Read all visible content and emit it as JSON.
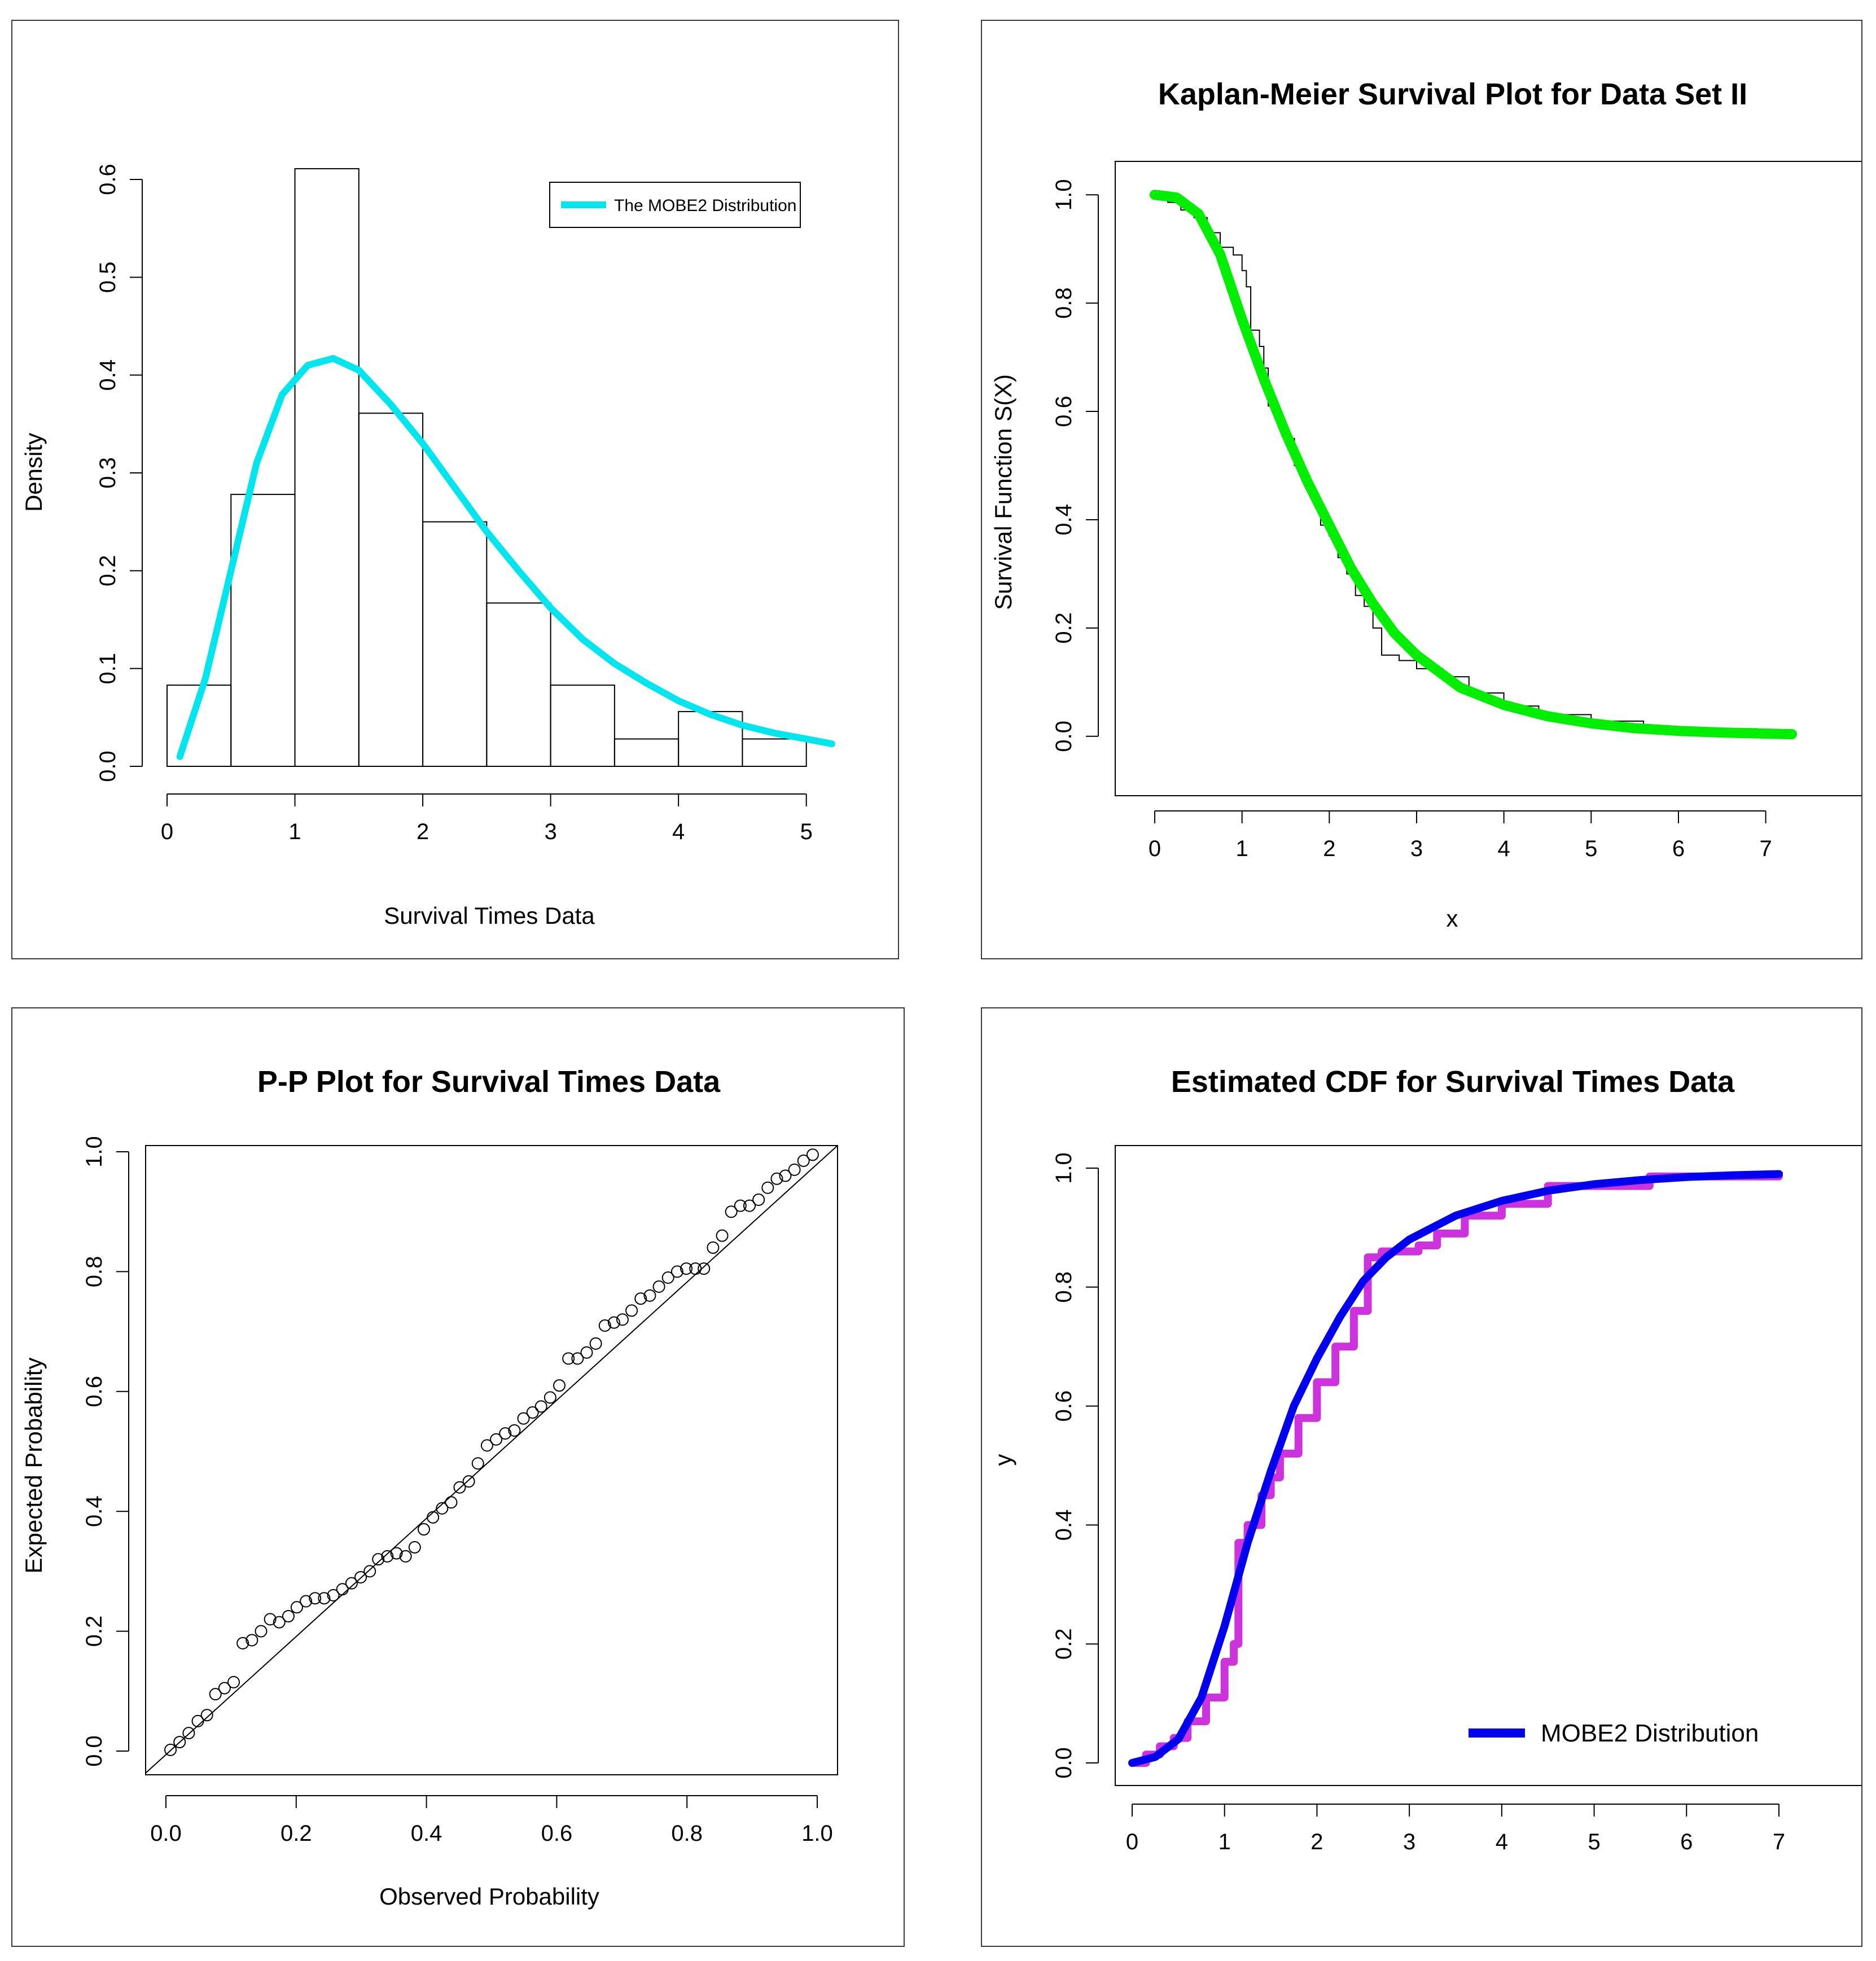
{
  "chart_data": [
    {
      "id": "density",
      "type": "histogram",
      "title": "",
      "xlabel": "Survival Times Data",
      "ylabel": "Density",
      "xlim": [
        0,
        5.2
      ],
      "ylim": [
        0,
        0.6
      ],
      "xticks": [
        "0",
        "1",
        "2",
        "3",
        "4",
        "5"
      ],
      "yticks": [
        "0.0",
        "0.1",
        "0.2",
        "0.3",
        "0.4",
        "0.5",
        "0.6"
      ],
      "bins": [
        0,
        0.5,
        1,
        1.5,
        2,
        2.5,
        3,
        3.5,
        4,
        4.5,
        5
      ],
      "densities": [
        0.083,
        0.278,
        0.611,
        0.361,
        0.25,
        0.167,
        0.083,
        0.028,
        0.056,
        0.028
      ],
      "curve": {
        "name": "The MOBE2 Distribution",
        "color": "#00e5ee",
        "x": [
          0.1,
          0.3,
          0.5,
          0.7,
          0.9,
          1.1,
          1.3,
          1.5,
          1.75,
          2.0,
          2.25,
          2.5,
          2.75,
          3.0,
          3.25,
          3.5,
          3.75,
          4.0,
          4.25,
          4.5,
          4.75,
          5.0,
          5.2
        ],
        "y": [
          0.01,
          0.09,
          0.2,
          0.31,
          0.38,
          0.41,
          0.417,
          0.405,
          0.37,
          0.33,
          0.285,
          0.24,
          0.2,
          0.162,
          0.13,
          0.105,
          0.085,
          0.067,
          0.053,
          0.042,
          0.034,
          0.028,
          0.023
        ]
      },
      "legend": "top-right"
    },
    {
      "id": "km",
      "type": "line",
      "title": "Kaplan-Meier Survival Plot for Data Set II",
      "xlabel": "x",
      "ylabel": "Survival  Function S(X)",
      "xlim": [
        0,
        7.3
      ],
      "ylim": [
        0,
        1
      ],
      "xticks": [
        "0",
        "1",
        "2",
        "3",
        "4",
        "5",
        "6",
        "7"
      ],
      "yticks": [
        "0.0",
        "0.2",
        "0.4",
        "0.6",
        "0.8",
        "1.0"
      ],
      "km_steps": {
        "x": [
          0,
          0.15,
          0.3,
          0.45,
          0.6,
          0.75,
          0.9,
          1.0,
          1.05,
          1.1,
          1.2,
          1.25,
          1.3,
          1.4,
          1.5,
          1.6,
          1.7,
          1.8,
          1.9,
          2.0,
          2.1,
          2.2,
          2.3,
          2.4,
          2.5,
          2.6,
          2.8,
          3.0,
          3.3,
          3.6,
          4.0,
          4.4,
          5.0,
          5.6,
          6.0,
          6.9,
          7.3
        ],
        "y": [
          1.0,
          0.986,
          0.972,
          0.958,
          0.93,
          0.903,
          0.889,
          0.86,
          0.83,
          0.75,
          0.72,
          0.68,
          0.61,
          0.58,
          0.55,
          0.5,
          0.47,
          0.44,
          0.39,
          0.37,
          0.33,
          0.3,
          0.26,
          0.24,
          0.2,
          0.15,
          0.14,
          0.125,
          0.11,
          0.08,
          0.056,
          0.04,
          0.028,
          0.014,
          0.014,
          0.0,
          0.0
        ]
      },
      "fitted": {
        "color": "#00ee00",
        "x": [
          0,
          0.25,
          0.5,
          0.75,
          1.0,
          1.25,
          1.5,
          1.75,
          2.0,
          2.25,
          2.5,
          2.75,
          3.0,
          3.5,
          4.0,
          4.5,
          5.0,
          5.5,
          6.0,
          6.5,
          7.0,
          7.3
        ],
        "y": [
          1.0,
          0.995,
          0.965,
          0.89,
          0.77,
          0.66,
          0.56,
          0.47,
          0.39,
          0.31,
          0.245,
          0.19,
          0.15,
          0.09,
          0.058,
          0.037,
          0.024,
          0.015,
          0.01,
          0.007,
          0.005,
          0.004
        ]
      }
    },
    {
      "id": "pp",
      "type": "scatter",
      "title": "P-P Plot for Survival Times Data",
      "xlabel": "Observed Probability",
      "ylabel": "Expected Probability",
      "xlim": [
        0,
        1.03
      ],
      "ylim": [
        0,
        1.03
      ],
      "xticks": [
        "0.0",
        "0.2",
        "0.4",
        "0.6",
        "0.8",
        "1.0"
      ],
      "yticks": [
        "0.0",
        "0.2",
        "0.4",
        "0.6",
        "0.8",
        "1.0"
      ],
      "observed": [
        0.007,
        0.021,
        0.035,
        0.049,
        0.063,
        0.076,
        0.09,
        0.104,
        0.118,
        0.132,
        0.146,
        0.16,
        0.174,
        0.188,
        0.201,
        0.215,
        0.229,
        0.243,
        0.257,
        0.271,
        0.285,
        0.299,
        0.313,
        0.326,
        0.34,
        0.354,
        0.368,
        0.382,
        0.396,
        0.41,
        0.424,
        0.438,
        0.451,
        0.465,
        0.479,
        0.493,
        0.507,
        0.521,
        0.535,
        0.549,
        0.563,
        0.576,
        0.59,
        0.604,
        0.618,
        0.632,
        0.646,
        0.66,
        0.674,
        0.688,
        0.701,
        0.715,
        0.729,
        0.743,
        0.757,
        0.771,
        0.785,
        0.799,
        0.813,
        0.826,
        0.84,
        0.854,
        0.868,
        0.882,
        0.896,
        0.91,
        0.924,
        0.938,
        0.951,
        0.965,
        0.979,
        0.993
      ],
      "expected": [
        0.002,
        0.015,
        0.03,
        0.05,
        0.06,
        0.095,
        0.105,
        0.115,
        0.18,
        0.185,
        0.2,
        0.22,
        0.215,
        0.225,
        0.24,
        0.25,
        0.255,
        0.255,
        0.26,
        0.27,
        0.28,
        0.29,
        0.3,
        0.32,
        0.325,
        0.33,
        0.325,
        0.34,
        0.37,
        0.39,
        0.405,
        0.415,
        0.44,
        0.45,
        0.48,
        0.51,
        0.52,
        0.53,
        0.535,
        0.555,
        0.565,
        0.575,
        0.59,
        0.61,
        0.655,
        0.655,
        0.665,
        0.68,
        0.71,
        0.715,
        0.72,
        0.735,
        0.755,
        0.76,
        0.775,
        0.79,
        0.8,
        0.805,
        0.805,
        0.805,
        0.84,
        0.86,
        0.9,
        0.91,
        0.91,
        0.92,
        0.94,
        0.955,
        0.96,
        0.97,
        0.985,
        0.995
      ]
    },
    {
      "id": "cdf",
      "type": "line",
      "title": "Estimated CDF for Survival Times Data",
      "xlabel": "",
      "ylabel": "y",
      "xlim": [
        0,
        7.3
      ],
      "ylim": [
        0,
        1
      ],
      "xticks": [
        "0",
        "1",
        "2",
        "3",
        "4",
        "5",
        "6",
        "7"
      ],
      "yticks": [
        "0.0",
        "0.2",
        "0.4",
        "0.6",
        "0.8",
        "1.0"
      ],
      "ecdf": {
        "color": "#cc33dd",
        "x": [
          0,
          0.15,
          0.3,
          0.45,
          0.6,
          0.8,
          1.0,
          1.1,
          1.15,
          1.25,
          1.4,
          1.5,
          1.6,
          1.8,
          2.0,
          2.2,
          2.4,
          2.55,
          2.7,
          2.9,
          3.1,
          3.3,
          3.6,
          4.0,
          4.5,
          5.6,
          6.0,
          7.0
        ],
        "y": [
          0.0,
          0.014,
          0.028,
          0.042,
          0.07,
          0.11,
          0.17,
          0.2,
          0.37,
          0.4,
          0.45,
          0.48,
          0.52,
          0.58,
          0.64,
          0.7,
          0.76,
          0.85,
          0.86,
          0.86,
          0.87,
          0.89,
          0.92,
          0.94,
          0.97,
          0.986,
          0.986,
          0.993
        ]
      },
      "fitted": {
        "name": "MOBE2 Distribution",
        "color": "#0000ee",
        "x": [
          0,
          0.25,
          0.5,
          0.75,
          1.0,
          1.25,
          1.5,
          1.75,
          2.0,
          2.25,
          2.5,
          2.75,
          3.0,
          3.5,
          4.0,
          4.5,
          5.0,
          5.5,
          6.0,
          6.5,
          7.0
        ],
        "y": [
          0.0,
          0.01,
          0.04,
          0.11,
          0.23,
          0.37,
          0.49,
          0.6,
          0.68,
          0.75,
          0.81,
          0.85,
          0.88,
          0.92,
          0.945,
          0.962,
          0.973,
          0.98,
          0.985,
          0.988,
          0.99
        ]
      },
      "legend": "bottom-right"
    }
  ]
}
